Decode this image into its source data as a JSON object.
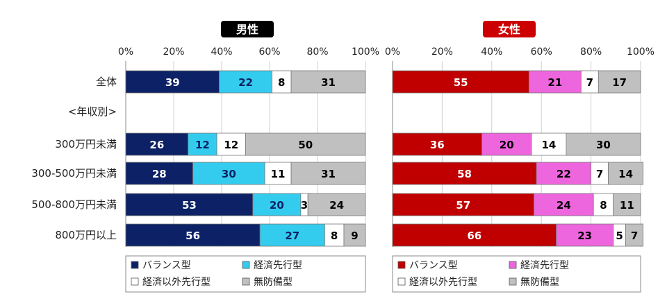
{
  "chart_data": [
    {
      "type": "bar",
      "orientation": "horizontal",
      "stacked": true,
      "title": "男性",
      "title_color": "#000000",
      "categories": [
        "全体",
        "<年収別>",
        "300万円未満",
        "300-500万円未満",
        "500-800万円未満",
        "800万円以上"
      ],
      "xlim": [
        0,
        100
      ],
      "x_ticks": [
        "0%",
        "20%",
        "40%",
        "60%",
        "80%",
        "100%"
      ],
      "legend_position": "bottom",
      "series": [
        {
          "name": "バランス型",
          "color": "#0d2266",
          "label_color": "#ffffff",
          "values": [
            39,
            null,
            26,
            28,
            53,
            56
          ]
        },
        {
          "name": "経済先行型",
          "color": "#33ccee",
          "label_color": "#0d2266",
          "values": [
            22,
            null,
            12,
            30,
            20,
            27
          ]
        },
        {
          "name": "経済以外先行型",
          "color": "#ffffff",
          "label_color": "#000000",
          "values": [
            8,
            null,
            12,
            11,
            3,
            8
          ]
        },
        {
          "name": "無防備型",
          "color": "#c0c0c0",
          "label_color": "#000000",
          "values": [
            31,
            null,
            50,
            31,
            24,
            9
          ]
        }
      ]
    },
    {
      "type": "bar",
      "orientation": "horizontal",
      "stacked": true,
      "title": "女性",
      "title_color": "#cc0000",
      "categories": [
        "全体",
        "<年収別>",
        "300万円未満",
        "300-500万円未満",
        "500-800万円未満",
        "800万円以上"
      ],
      "xlim": [
        0,
        100
      ],
      "x_ticks": [
        "0%",
        "20%",
        "40%",
        "60%",
        "80%",
        "100%"
      ],
      "legend_position": "bottom",
      "series": [
        {
          "name": "バランス型",
          "color": "#c00000",
          "label_color": "#ffffff",
          "values": [
            55,
            null,
            36,
            58,
            57,
            66
          ]
        },
        {
          "name": "経済先行型",
          "color": "#ee66dd",
          "label_color": "#000000",
          "values": [
            21,
            null,
            20,
            22,
            24,
            23
          ]
        },
        {
          "name": "経済以外先行型",
          "color": "#ffffff",
          "label_color": "#000000",
          "values": [
            7,
            null,
            14,
            7,
            8,
            5
          ]
        },
        {
          "name": "無防備型",
          "color": "#c0c0c0",
          "label_color": "#000000",
          "values": [
            17,
            null,
            30,
            14,
            11,
            7
          ]
        }
      ]
    }
  ]
}
